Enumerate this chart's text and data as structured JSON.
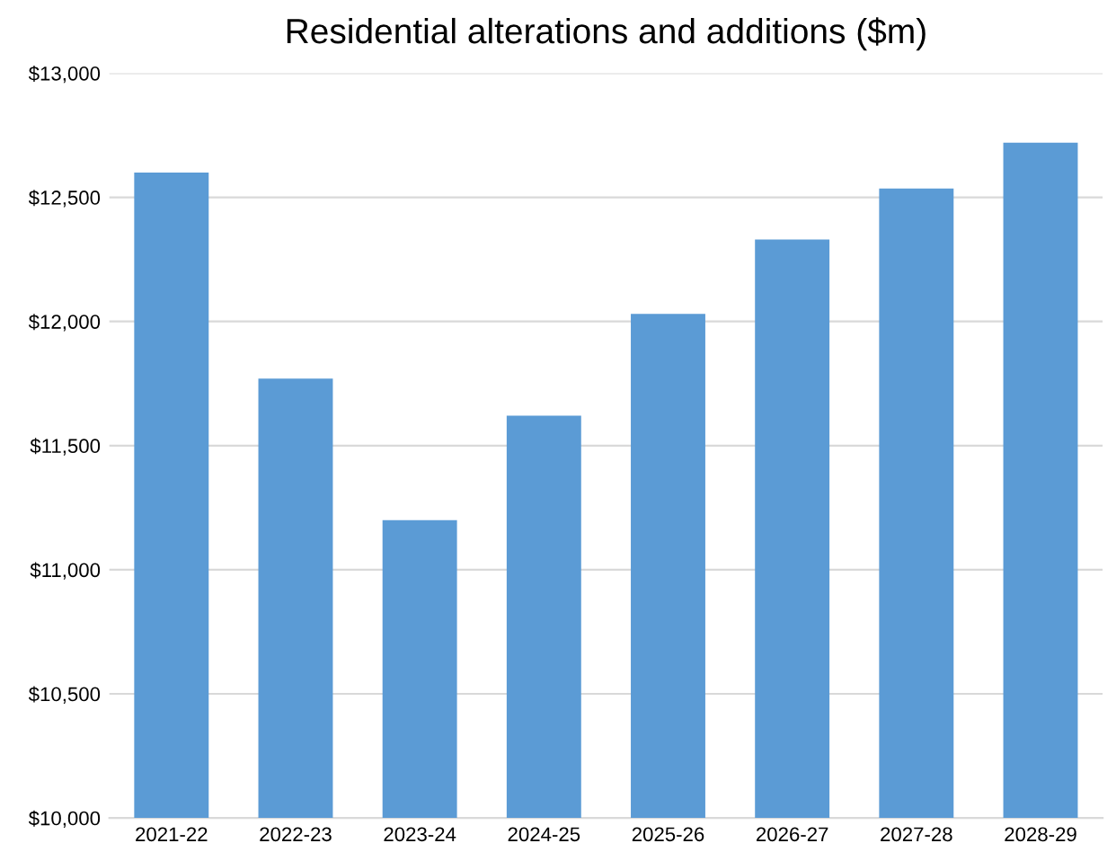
{
  "chart_data": {
    "type": "bar",
    "title": "Residential alterations and additions ($m)",
    "categories": [
      "2021-22",
      "2022-23",
      "2023-24",
      "2024-25",
      "2025-26",
      "2026-27",
      "2027-28",
      "2028-29"
    ],
    "values": [
      12600,
      11770,
      11200,
      11620,
      12030,
      12330,
      12535,
      12720
    ],
    "color": "#5b9bd5",
    "ylim": [
      10000,
      13000
    ],
    "yticks": [
      {
        "value": 10000,
        "label": "$10,000"
      },
      {
        "value": 10500,
        "label": "$10,500"
      },
      {
        "value": 11000,
        "label": "$11,000"
      },
      {
        "value": 11500,
        "label": "$11,500"
      },
      {
        "value": 12000,
        "label": "$12,000"
      },
      {
        "value": 12500,
        "label": "$12,500"
      },
      {
        "value": 13000,
        "label": "$13,000"
      }
    ],
    "grid": "y"
  }
}
